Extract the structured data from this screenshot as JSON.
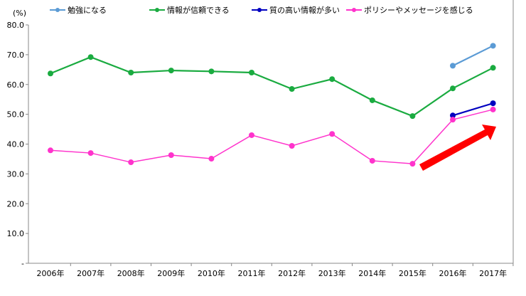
{
  "chart_data": {
    "type": "line",
    "ylabel": "(%)",
    "ylim": [
      0,
      80
    ],
    "yticks": [
      "-",
      "10.0",
      "20.0",
      "30.0",
      "40.0",
      "50.0",
      "60.0",
      "70.0",
      "80.0"
    ],
    "categories": [
      "2006年",
      "2007年",
      "2008年",
      "2009年",
      "2010年",
      "2011年",
      "2012年",
      "2013年",
      "2014年",
      "2015年",
      "2016年",
      "2017年"
    ],
    "legend_position": "top",
    "grid": false,
    "series": [
      {
        "name": "勉強になる",
        "color": "#5b9bd5",
        "values": [
          null,
          null,
          null,
          null,
          null,
          null,
          null,
          null,
          null,
          null,
          66.3,
          73.0
        ]
      },
      {
        "name": "情報が信頼できる",
        "color": "#1aab40",
        "values": [
          63.7,
          69.2,
          64.0,
          64.7,
          64.4,
          64.0,
          58.5,
          61.8,
          54.7,
          49.4,
          58.7,
          65.6
        ]
      },
      {
        "name": "質の高い情報が多い",
        "color": "#0000c0",
        "values": [
          null,
          null,
          null,
          null,
          null,
          null,
          null,
          null,
          null,
          null,
          49.6,
          53.7
        ]
      },
      {
        "name": "ポリシーやメッセージを感じる",
        "color": "#ff33cc",
        "values": [
          37.9,
          37.0,
          33.9,
          36.3,
          35.1,
          43.0,
          39.4,
          43.4,
          34.4,
          33.4,
          48.2,
          51.6
        ]
      }
    ],
    "annotation": {
      "type": "arrow",
      "color": "#ff0000"
    }
  }
}
